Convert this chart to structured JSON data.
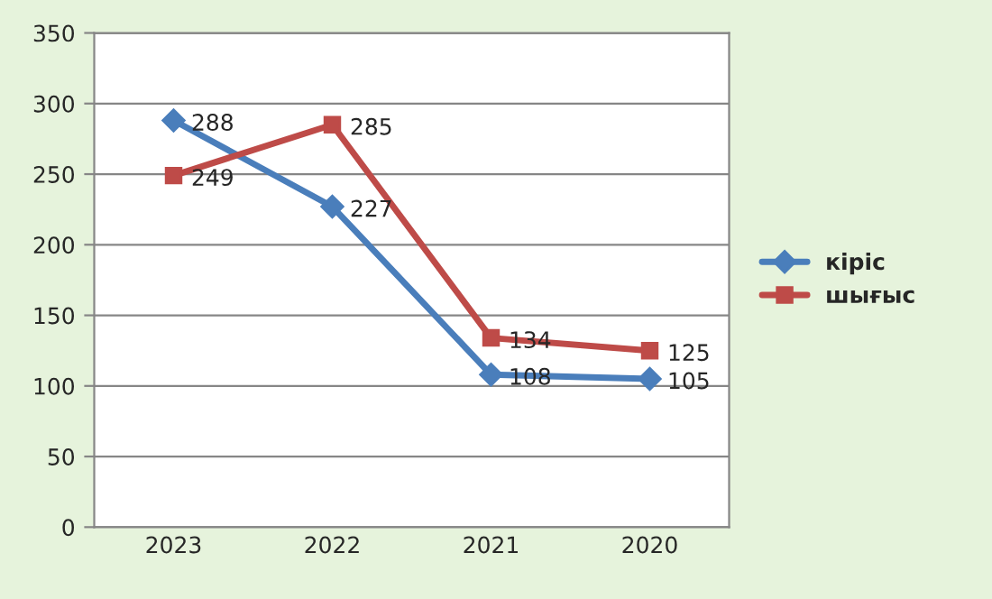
{
  "chart_data": {
    "type": "line",
    "categories": [
      "2023",
      "2022",
      "2021",
      "2020"
    ],
    "series": [
      {
        "name": "кіріс",
        "color": "#4a7ebb",
        "values": [
          288,
          227,
          108,
          105
        ],
        "marker": "diamond"
      },
      {
        "name": "шығыс",
        "color": "#be4b48",
        "values": [
          249,
          285,
          134,
          125
        ],
        "marker": "square"
      }
    ],
    "ylim": [
      0,
      350
    ],
    "yticks": [
      0,
      50,
      100,
      150,
      200,
      250,
      300,
      350
    ],
    "grid": "y",
    "legend": "right",
    "data_labels": true,
    "line_style": "solid"
  }
}
